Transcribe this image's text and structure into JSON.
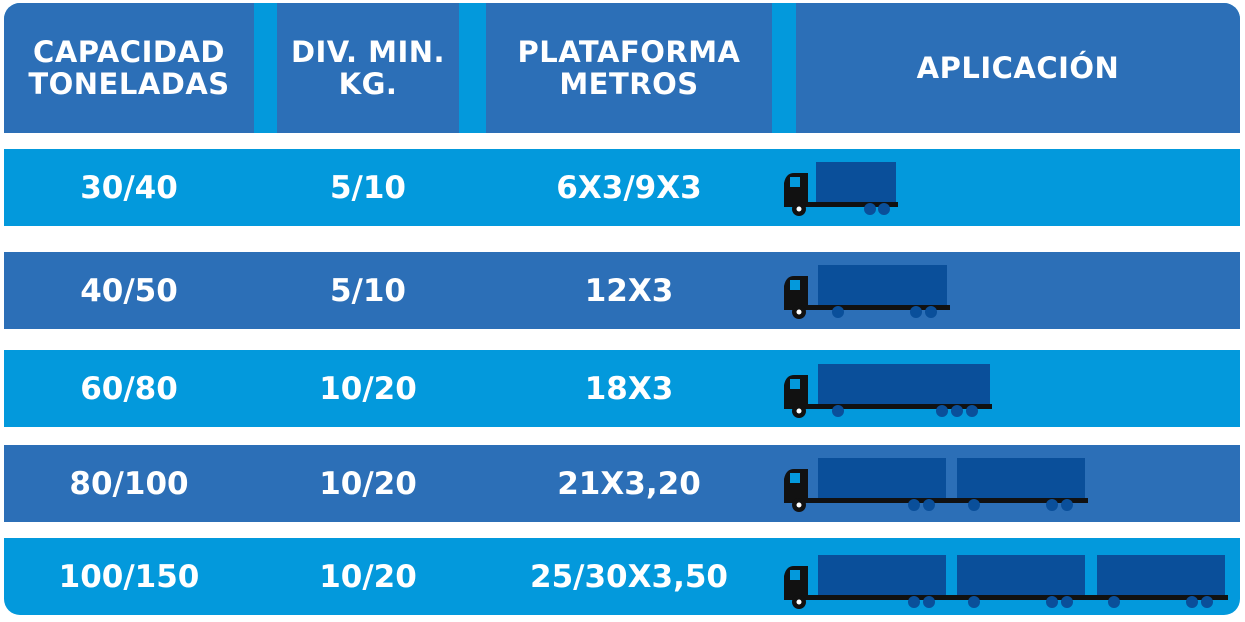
{
  "header": {
    "capacidad": [
      "CAPACIDAD",
      "TONELADAS"
    ],
    "division": [
      "DIV. MIN.",
      "KG."
    ],
    "plataforma": [
      "PLATAFORMA",
      "METROS"
    ],
    "aplicacion": "APLICACIÓN"
  },
  "rows": [
    {
      "capacidad": "30/40",
      "division": "5/10",
      "plataforma": "6X3/9X3",
      "truck_icon": "truck-short-icon"
    },
    {
      "capacidad": "40/50",
      "division": "5/10",
      "plataforma": "12X3",
      "truck_icon": "truck-medium-icon"
    },
    {
      "capacidad": "60/80",
      "division": "10/20",
      "plataforma": "18X3",
      "truck_icon": "truck-long-icon"
    },
    {
      "capacidad": "80/100",
      "division": "10/20",
      "plataforma": "21X3,20",
      "truck_icon": "truck-double-trailer-icon"
    },
    {
      "capacidad": "100/150",
      "division": "10/20",
      "plataforma": "25/30X3,50",
      "truck_icon": "truck-triple-trailer-icon"
    }
  ],
  "colors": {
    "header_bg": "#2c6fb7",
    "header_stripe": "#0399dc",
    "row_light": "#0399dc",
    "row_dark": "#2c6fb7",
    "trailer": "#0a4f9a",
    "cab": "#111111"
  }
}
